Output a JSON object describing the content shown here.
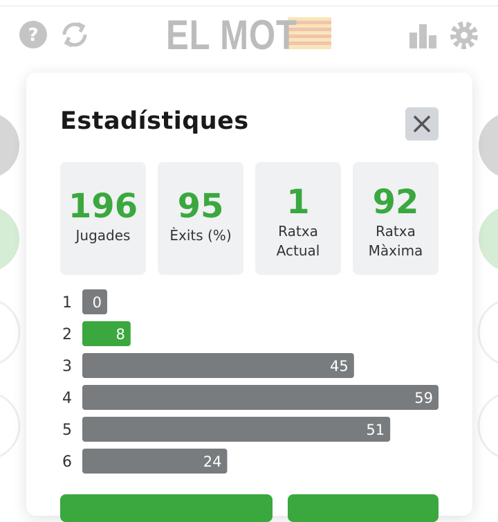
{
  "header": {
    "title": "EL MOT"
  },
  "modal": {
    "title": "Estadístiques",
    "stats": [
      {
        "value": 196,
        "label": "Jugades"
      },
      {
        "value": 95,
        "label": "Èxits (%)"
      },
      {
        "value": 1,
        "label": "Ratxa Actual"
      },
      {
        "value": 92,
        "label": "Ratxa Màxima"
      }
    ],
    "distribution": {
      "type": "bar",
      "categories": [
        1,
        2,
        3,
        4,
        5,
        6
      ],
      "values": [
        0,
        8,
        45,
        59,
        51,
        24
      ],
      "colors": [
        "#787c7e",
        "#3aa83f",
        "#787c7e",
        "#787c7e",
        "#787c7e",
        "#787c7e"
      ]
    }
  }
}
